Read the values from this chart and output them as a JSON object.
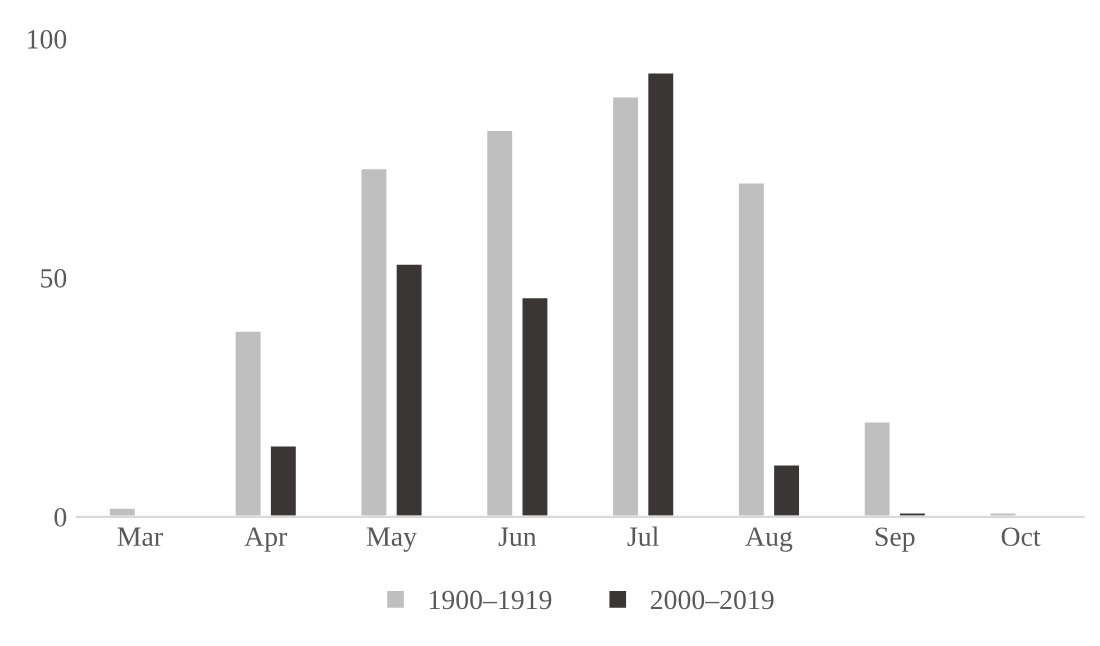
{
  "chart_data": {
    "type": "bar",
    "categories": [
      "Mar",
      "Apr",
      "May",
      "Jun",
      "Jul",
      "Aug",
      "Sep",
      "Oct"
    ],
    "series": [
      {
        "name": "1900–1919",
        "color": "#bfbfbf",
        "values": [
          2,
          39,
          73,
          81,
          88,
          70,
          20,
          1
        ]
      },
      {
        "name": "2000–2019",
        "color": "#3a3636",
        "values": [
          null,
          15,
          53,
          46,
          93,
          11,
          1,
          null
        ]
      }
    ],
    "ylim": [
      0,
      100
    ],
    "yticks": [
      0,
      50,
      100
    ],
    "grid": false,
    "legend": "bottom"
  }
}
